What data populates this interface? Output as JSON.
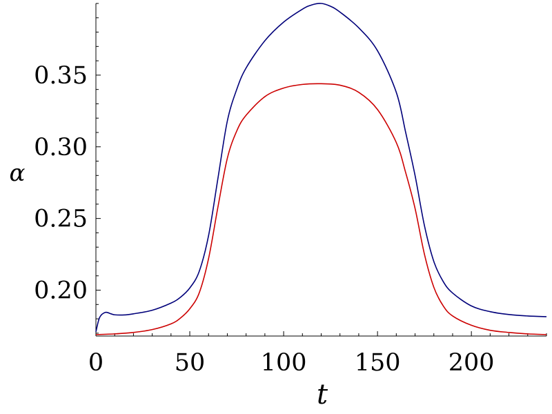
{
  "chart_data": {
    "type": "line",
    "xlabel": "t",
    "ylabel": "α",
    "xlim": [
      0,
      240
    ],
    "ylim": [
      0.168,
      0.4
    ],
    "xticks": [
      0,
      50,
      100,
      150,
      200
    ],
    "xtick_labels": [
      "0",
      "50",
      "100",
      "150",
      "200"
    ],
    "yticks": [
      0.2,
      0.25,
      0.3,
      0.35
    ],
    "ytick_labels": [
      "0.20",
      "0.25",
      "0.30",
      "0.35"
    ],
    "grid": false,
    "series": [
      {
        "color": "#00007a",
        "x": [
          0,
          2,
          5,
          8,
          10,
          15,
          20,
          30,
          40,
          45,
          50,
          55,
          60,
          65,
          70,
          75,
          80,
          90,
          100,
          110,
          115,
          120,
          125,
          130,
          140,
          150,
          160,
          165,
          170,
          175,
          180,
          185,
          190,
          200,
          210,
          220,
          230,
          240
        ],
        "y": [
          0.171,
          0.181,
          0.1845,
          0.1835,
          0.1828,
          0.1827,
          0.1835,
          0.186,
          0.191,
          0.195,
          0.2015,
          0.213,
          0.238,
          0.278,
          0.318,
          0.34,
          0.355,
          0.374,
          0.387,
          0.396,
          0.399,
          0.4,
          0.398,
          0.394,
          0.383,
          0.367,
          0.338,
          0.31,
          0.28,
          0.245,
          0.22,
          0.206,
          0.198,
          0.189,
          0.185,
          0.183,
          0.182,
          0.1815
        ]
      },
      {
        "color": "#cc0000",
        "x": [
          0,
          10,
          20,
          30,
          40,
          45,
          50,
          55,
          60,
          65,
          70,
          75,
          80,
          90,
          100,
          110,
          120,
          130,
          140,
          150,
          160,
          165,
          170,
          175,
          180,
          185,
          190,
          200,
          210,
          220,
          230,
          240
        ],
        "y": [
          0.169,
          0.1695,
          0.1705,
          0.1725,
          0.1765,
          0.1805,
          0.187,
          0.198,
          0.222,
          0.258,
          0.292,
          0.311,
          0.322,
          0.335,
          0.341,
          0.3435,
          0.344,
          0.343,
          0.338,
          0.326,
          0.303,
          0.282,
          0.257,
          0.225,
          0.202,
          0.189,
          0.182,
          0.1755,
          0.172,
          0.1705,
          0.1695,
          0.169
        ]
      }
    ]
  }
}
